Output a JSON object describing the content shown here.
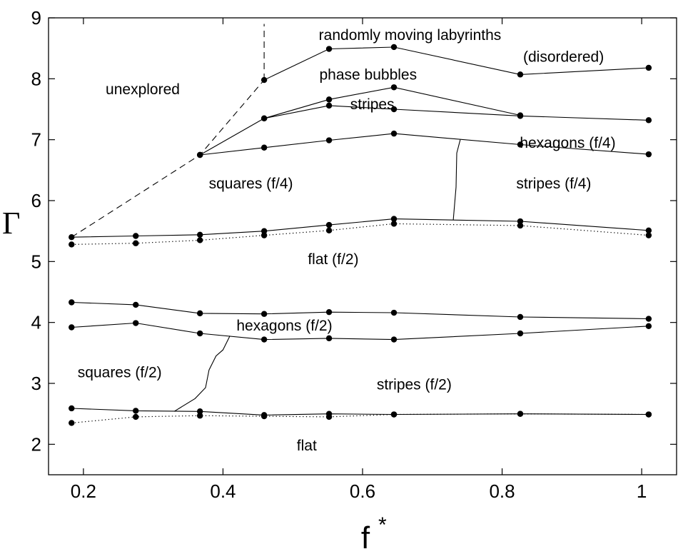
{
  "chart_data": {
    "type": "line",
    "title": "",
    "xlabel": "f",
    "xlabel_superscript": "*",
    "ylabel": "Γ",
    "xlim": [
      0.15,
      1.05
    ],
    "ylim": [
      1.5,
      9
    ],
    "xticks": [
      0.2,
      0.4,
      0.6,
      0.8,
      1
    ],
    "xtick_labels": [
      "0.2",
      "0.4",
      "0.6",
      "0.8",
      "1"
    ],
    "yticks": [
      2,
      3,
      4,
      5,
      6,
      7,
      8,
      9
    ],
    "ytick_labels": [
      "2",
      "3",
      "4",
      "5",
      "6",
      "7",
      "8",
      "9"
    ],
    "grid": false,
    "series": [
      {
        "style": "solid",
        "markers": true,
        "x": [
          0.459,
          0.552,
          0.645,
          0.826,
          1.01
        ],
        "y": [
          7.98,
          8.49,
          8.52,
          8.07,
          8.18
        ]
      },
      {
        "style": "solid",
        "markers": true,
        "x": [
          0.367,
          0.459,
          0.552,
          0.645,
          0.826
        ],
        "y": [
          6.75,
          7.35,
          7.66,
          7.86,
          7.4
        ]
      },
      {
        "style": "solid",
        "markers": true,
        "x": [
          0.459,
          0.552,
          0.645,
          0.826,
          1.01
        ],
        "y": [
          7.35,
          7.56,
          7.5,
          7.39,
          7.32
        ]
      },
      {
        "style": "solid",
        "markers": true,
        "x": [
          0.367,
          0.459,
          0.552,
          0.645,
          0.826,
          1.01
        ],
        "y": [
          6.75,
          6.87,
          6.99,
          7.1,
          6.92,
          6.76
        ]
      },
      {
        "style": "solid",
        "markers": true,
        "x": [
          0.183,
          0.275,
          0.367,
          0.459,
          0.552,
          0.645,
          0.826,
          1.01
        ],
        "y": [
          5.4,
          5.42,
          5.44,
          5.5,
          5.6,
          5.7,
          5.66,
          5.51
        ]
      },
      {
        "style": "dotted",
        "markers": true,
        "x": [
          0.183,
          0.275,
          0.367,
          0.459,
          0.552,
          0.645,
          0.826,
          1.01
        ],
        "y": [
          5.28,
          5.3,
          5.35,
          5.43,
          5.51,
          5.62,
          5.59,
          5.43
        ]
      },
      {
        "style": "solid",
        "markers": true,
        "x": [
          0.183,
          0.275,
          0.367,
          0.459,
          0.552,
          0.645,
          0.826,
          1.01
        ],
        "y": [
          4.33,
          4.29,
          4.15,
          4.14,
          4.17,
          4.16,
          4.09,
          4.06
        ]
      },
      {
        "style": "solid",
        "markers": true,
        "x": [
          0.183,
          0.275,
          0.367,
          0.459,
          0.552,
          0.645,
          0.826,
          1.01
        ],
        "y": [
          3.92,
          3.99,
          3.82,
          3.72,
          3.74,
          3.72,
          3.82,
          3.94
        ]
      },
      {
        "style": "solid",
        "markers": true,
        "x": [
          0.183,
          0.275,
          0.367,
          0.459,
          0.552,
          0.645,
          0.826,
          1.01
        ],
        "y": [
          2.59,
          2.55,
          2.54,
          2.48,
          2.5,
          2.49,
          2.5,
          2.49
        ]
      },
      {
        "style": "dotted",
        "markers": true,
        "x": [
          0.183,
          0.275,
          0.367,
          0.459,
          0.552,
          0.645,
          0.826,
          1.01
        ],
        "y": [
          2.35,
          2.45,
          2.47,
          2.46,
          2.45,
          2.49,
          2.5,
          2.49
        ]
      },
      {
        "style": "dashed",
        "markers": false,
        "x": [
          0.183,
          0.367,
          0.459
        ],
        "y": [
          5.4,
          6.75,
          7.98
        ]
      },
      {
        "style": "dashed",
        "markers": false,
        "x": [
          0.459,
          0.459
        ],
        "y": [
          7.98,
          8.9
        ]
      },
      {
        "style": "solid",
        "markers": false,
        "x": [
          0.74,
          0.735,
          0.734,
          0.73
        ],
        "y": [
          7.0,
          6.78,
          6.22,
          5.68
        ]
      },
      {
        "style": "solid",
        "markers": false,
        "x": [
          0.33,
          0.36,
          0.375,
          0.38,
          0.39,
          0.4,
          0.41
        ],
        "y": [
          2.54,
          2.75,
          2.93,
          3.22,
          3.45,
          3.55,
          3.78
        ]
      }
    ],
    "annotations": [
      {
        "text": "randomly moving labyrinths",
        "x": 0.668,
        "y": 8.72
      },
      {
        "text": "(disordered)",
        "x": 0.888,
        "y": 8.36
      },
      {
        "text": "phase bubbles",
        "x": 0.608,
        "y": 8.07
      },
      {
        "text": "unexplored",
        "x": 0.285,
        "y": 7.83
      },
      {
        "text": "stripes",
        "x": 0.614,
        "y": 7.58
      },
      {
        "text": "hexagons (f/4)",
        "x": 0.894,
        "y": 6.95
      },
      {
        "text": "squares (f/4)",
        "x": 0.44,
        "y": 6.28
      },
      {
        "text": "stripes (f/4)",
        "x": 0.874,
        "y": 6.28
      },
      {
        "text": "flat (f/2)",
        "x": 0.558,
        "y": 5.04
      },
      {
        "text": "hexagons (f/2)",
        "x": 0.488,
        "y": 3.95
      },
      {
        "text": "squares (f/2)",
        "x": 0.252,
        "y": 3.18
      },
      {
        "text": "stripes (f/2)",
        "x": 0.674,
        "y": 2.98
      },
      {
        "text": "flat",
        "x": 0.52,
        "y": 1.98
      }
    ]
  }
}
